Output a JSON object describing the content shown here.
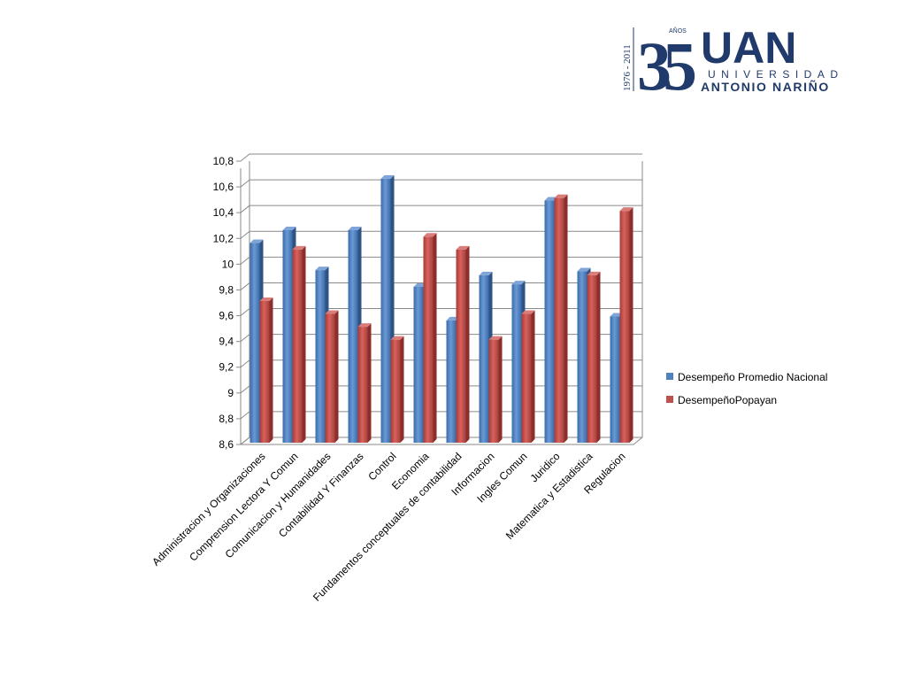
{
  "logo": {
    "years": "1976 - 2011",
    "number": "35",
    "anos": "AÑOS",
    "acronym": "UAN",
    "line1": "UNIVERSIDAD",
    "line2": "ANTONIO NARIÑO"
  },
  "colors": {
    "nacional": "#4F81BD",
    "popayan": "#C0504D",
    "navy": "#1F3A6B"
  },
  "chart_data": {
    "type": "bar",
    "categories": [
      "Administracion y Organizaciones",
      "Comprension Lectora Y Comun",
      "Comunicacion y Humanidades",
      "Contabilidad Y Finanzas",
      "Control",
      "Economia",
      "Fundamentos conceptuales de contabilidad",
      "Informacion",
      "Ingles Comun",
      "Juridico",
      "Matematica y Estadistica",
      "Regulacion"
    ],
    "series": [
      {
        "name": "Desempeño Promedio Nacional",
        "values": [
          10.15,
          10.25,
          9.94,
          10.25,
          10.65,
          9.81,
          9.55,
          9.9,
          9.83,
          10.48,
          9.93,
          9.58
        ]
      },
      {
        "name": "DesempeñoPopayan",
        "values": [
          9.7,
          10.1,
          9.6,
          9.5,
          9.4,
          10.2,
          10.1,
          9.4,
          9.6,
          10.5,
          9.9,
          10.4
        ]
      }
    ],
    "yticks": [
      "8,6",
      "8,8",
      "9",
      "9,2",
      "9,4",
      "9,6",
      "9,8",
      "10",
      "10,2",
      "10,4",
      "10,6",
      "10,8"
    ],
    "ylim": [
      8.6,
      10.8
    ],
    "grid": true,
    "legend": "right",
    "title": "",
    "xlabel": "",
    "ylabel": ""
  }
}
